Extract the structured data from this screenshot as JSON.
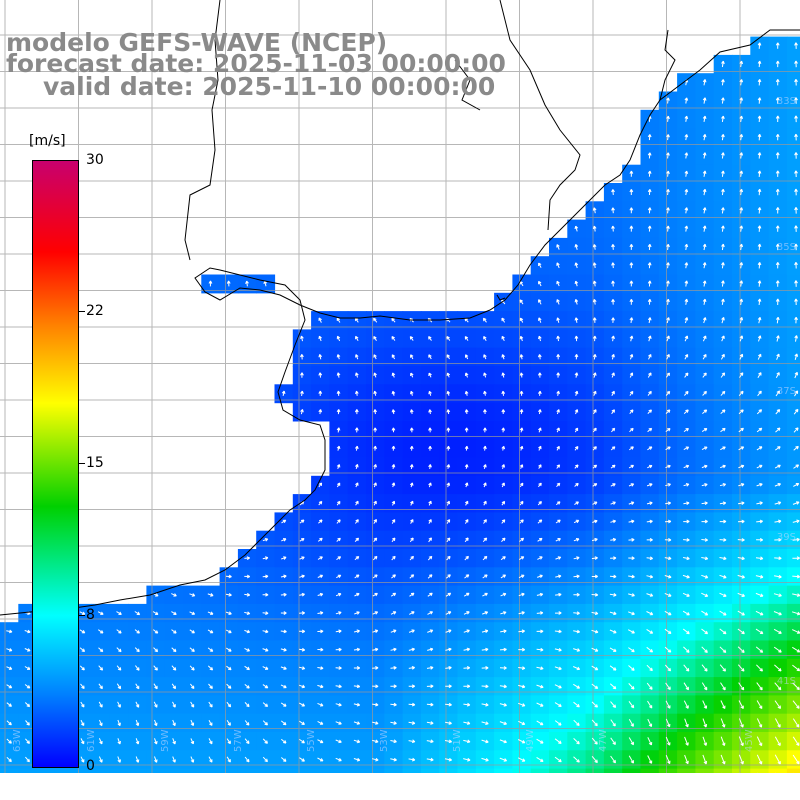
{
  "header": {
    "line1": "modelo GEFS-WAVE (NCEP)",
    "line2": "forecast date: 2025-11-03 00:00:00",
    "line3": "valid date: 2025-11-10 00:00:00"
  },
  "colorbar": {
    "unit": "[m/s]",
    "ticks": [
      "30",
      "22",
      "15",
      "8",
      "0"
    ],
    "colors": [
      "#c8006e",
      "#ff0000",
      "#ff8000",
      "#ffff00",
      "#00d000",
      "#00ffff",
      "#0080ff",
      "#0000ff"
    ]
  },
  "map": {
    "variable": "wind speed and direction",
    "land_color": "#ffffff",
    "grid_color": "#9a9a9a",
    "arrow_color": "#ffffff",
    "lat_labels": [
      "33S",
      "35S",
      "37S",
      "39S",
      "41S"
    ],
    "lon_labels": [
      "63W",
      "61W",
      "59W",
      "57W",
      "55W",
      "53W",
      "51W",
      "49W",
      "47W",
      "45W"
    ]
  }
}
